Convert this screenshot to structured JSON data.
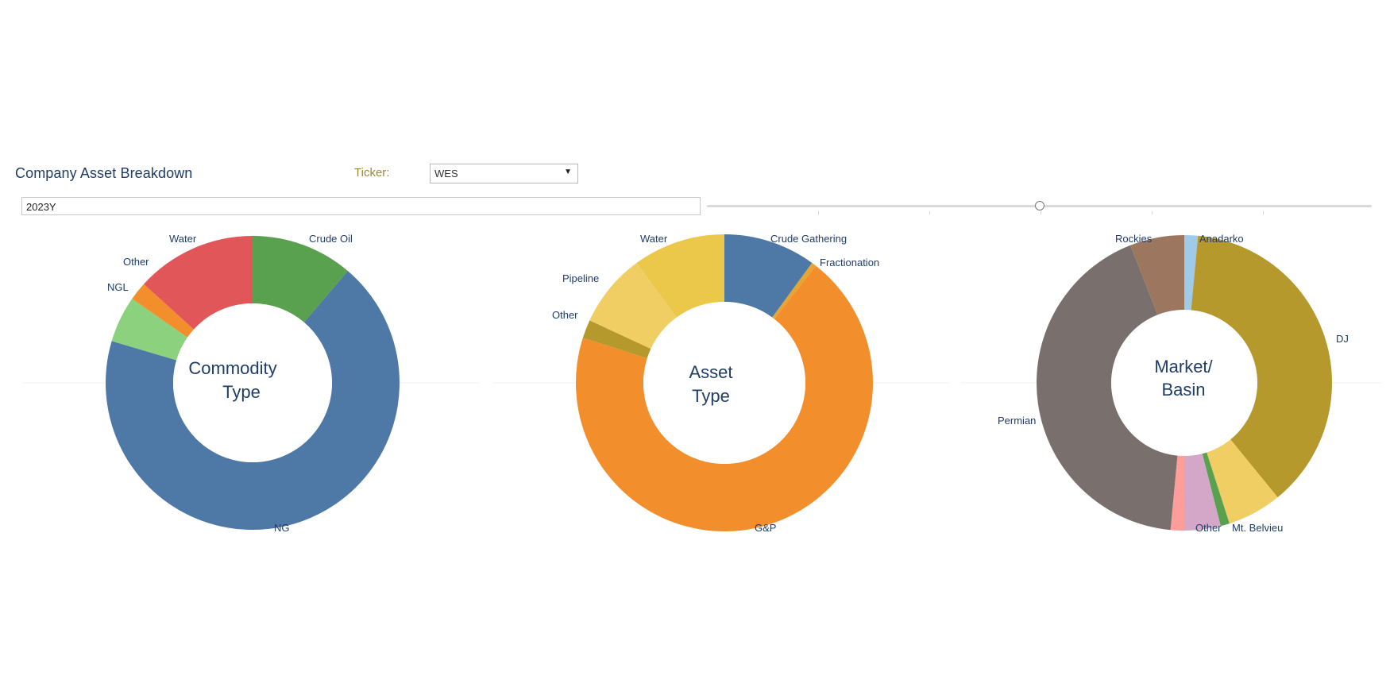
{
  "header": {
    "title": "Company Asset Breakdown",
    "ticker_label": "Ticker:",
    "ticker_value": "WES"
  },
  "period": {
    "value": "2023Y",
    "slider_position": 0.5
  },
  "colors": {
    "title": "#1f3d67",
    "ticker_label": "#a08840"
  },
  "chart_data": [
    {
      "type": "pie",
      "subtype": "donut",
      "center_label": [
        "Commodity",
        "Type"
      ],
      "labels": [
        "Crude Oil",
        "NG",
        "NGL",
        "Other",
        "Water"
      ],
      "values": [
        11,
        67,
        5,
        2,
        13
      ],
      "colors": [
        "#59a14f",
        "#4e79a7",
        "#8cd17d",
        "#f28e2b",
        "#e15759"
      ]
    },
    {
      "type": "pie",
      "subtype": "donut",
      "center_label": [
        "Asset",
        "Type"
      ],
      "labels": [
        "Crude Gathering",
        "Fractionation",
        "G&P",
        "Other",
        "Pipeline",
        "Water"
      ],
      "values": [
        10,
        0.5,
        69,
        2,
        8,
        10
      ],
      "colors": [
        "#4e79a7",
        "#e6a532",
        "#f28e2b",
        "#b6992d",
        "#f1ce63",
        "#ebc84a"
      ]
    },
    {
      "type": "pie",
      "subtype": "donut",
      "center_label": [
        "Market/",
        "Basin"
      ],
      "labels": [
        "Anadarko",
        "DJ",
        "Mt. Belvieu",
        "Other",
        "Permian",
        "Rockies"
      ],
      "values": [
        1.5,
        38,
        6,
        4,
        43,
        6
      ],
      "colors": [
        "#a0cbe8",
        "#b6992d",
        "#f1ce63",
        "#d4a6c8",
        "#79706e",
        "#9d7660"
      ],
      "extra_slices": [
        {
          "after": "Mt. Belvieu",
          "value": 1,
          "color": "#59a14f"
        },
        {
          "after": "Other",
          "value": 1.5,
          "color": "#ff9d9a"
        }
      ]
    }
  ]
}
